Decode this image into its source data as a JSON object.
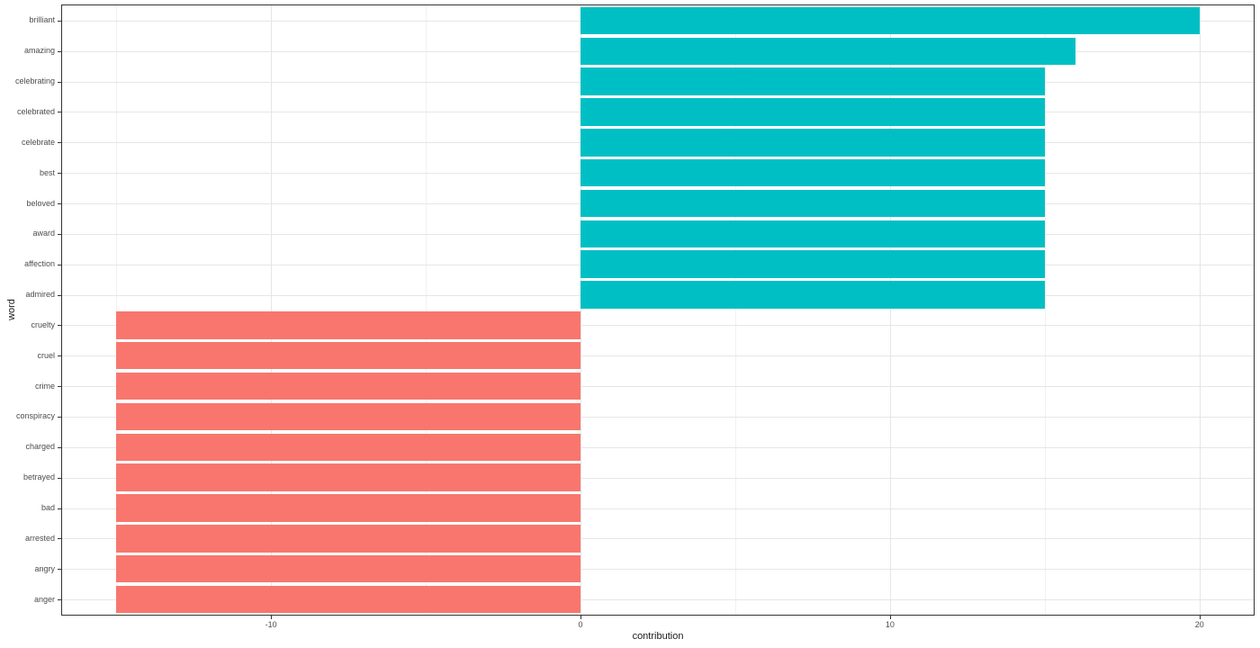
{
  "chart_data": {
    "type": "bar",
    "orientation": "horizontal",
    "title": "",
    "xlabel": "contribution",
    "ylabel": "word",
    "categories": [
      "brilliant",
      "amazing",
      "celebrating",
      "celebrated",
      "celebrate",
      "best",
      "beloved",
      "award",
      "affection",
      "admired",
      "cruelty",
      "cruel",
      "crime",
      "conspiracy",
      "charged",
      "betrayed",
      "bad",
      "arrested",
      "angry",
      "anger"
    ],
    "series": [
      {
        "name": "contribution",
        "values": [
          20,
          16,
          15,
          15,
          15,
          15,
          15,
          15,
          15,
          15,
          -15,
          -15,
          -15,
          -15,
          -15,
          -15,
          -15,
          -15,
          -15,
          -15
        ]
      }
    ],
    "groups": [
      "positive",
      "positive",
      "positive",
      "positive",
      "positive",
      "positive",
      "positive",
      "positive",
      "positive",
      "positive",
      "negative",
      "negative",
      "negative",
      "negative",
      "negative",
      "negative",
      "negative",
      "negative",
      "negative",
      "negative"
    ],
    "colors": {
      "positive": "#00BFC4",
      "negative": "#F8766D"
    },
    "xlim": [
      -16.75,
      21.75
    ],
    "x_major_ticks": [
      -10,
      0,
      10,
      20
    ],
    "x_minor_ticks": [
      -15,
      -5,
      5,
      15
    ],
    "bar_width_ratio": 0.9,
    "grid": true,
    "legend": "none"
  },
  "theme": {
    "panel_background": "#FFFFFF",
    "panel_border": "#333333",
    "grid_major": "#E6E6E6",
    "grid_minor": "#F1F1F1",
    "tick_mark_color": "#333333",
    "tick_label_color": "#4D4D4D",
    "axis_title_color": "#1A1A1A"
  }
}
